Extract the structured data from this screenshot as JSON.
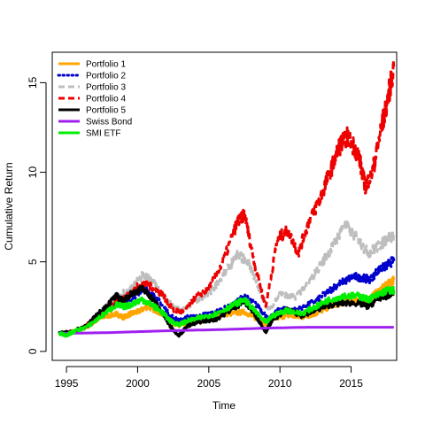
{
  "chart_data": {
    "type": "line",
    "title": "",
    "xlabel": "Time",
    "ylabel": "Cumulative Return",
    "xlim": [
      1994.0,
      2018.2
    ],
    "ylim": [
      -0.5,
      16.7
    ],
    "xticks": [
      1995,
      2000,
      2005,
      2010,
      2015
    ],
    "yticks": [
      0,
      5,
      10,
      15
    ],
    "grid": false,
    "legend_position": "top-left",
    "series": [
      {
        "name": "Portfolio 1",
        "color": "#FFA500",
        "style": "solid",
        "x": [
          1994.5,
          1995.5,
          1996.5,
          1997.5,
          1998.5,
          1999.0,
          1999.5,
          2000.0,
          2000.7,
          2001.5,
          2002.3,
          2002.9,
          2003.5,
          2004.5,
          2005.5,
          2006.5,
          2007.5,
          2008.2,
          2009.0,
          2009.5,
          2010.5,
          2011.5,
          2012.5,
          2013.5,
          2014.5,
          2015.5,
          2016.2,
          2017.0,
          2017.5,
          2018.0
        ],
        "y": [
          1.0,
          1.1,
          1.4,
          1.9,
          2.1,
          1.9,
          2.1,
          2.2,
          2.5,
          2.2,
          1.7,
          1.4,
          1.6,
          1.7,
          2.0,
          2.1,
          2.2,
          1.9,
          1.5,
          1.8,
          2.0,
          1.9,
          2.1,
          2.5,
          2.8,
          2.9,
          2.9,
          3.4,
          3.7,
          4.0
        ]
      },
      {
        "name": "Portfolio 2",
        "color": "#0000CC",
        "style": "dotted",
        "x": [
          1994.5,
          1995.5,
          1996.5,
          1997.5,
          1998.5,
          1999.5,
          2000.5,
          2001.0,
          2001.5,
          2002.3,
          2002.9,
          2003.5,
          2004.5,
          2005.5,
          2006.5,
          2007.5,
          2008.5,
          2009.2,
          2010.0,
          2011.0,
          2012.0,
          2013.0,
          2013.8,
          2014.5,
          2015.2,
          2015.8,
          2016.3,
          2017.0,
          2017.5,
          2018.0
        ],
        "y": [
          1.0,
          1.1,
          1.4,
          2.1,
          2.7,
          2.9,
          3.5,
          3.2,
          2.8,
          2.0,
          1.7,
          1.9,
          2.0,
          2.2,
          2.5,
          3.1,
          2.5,
          1.8,
          2.4,
          2.3,
          2.6,
          3.1,
          3.6,
          3.9,
          4.2,
          4.1,
          4.0,
          4.6,
          4.8,
          5.1
        ]
      },
      {
        "name": "Portfolio 3",
        "color": "#BEBEBE",
        "style": "dashed",
        "x": [
          1994.5,
          1995.5,
          1996.5,
          1997.5,
          1998.5,
          1999.5,
          2000.3,
          2001.0,
          2001.7,
          2002.5,
          2003.2,
          2004.0,
          2005.0,
          2006.0,
          2007.0,
          2007.8,
          2008.5,
          2009.2,
          2010.0,
          2011.0,
          2012.0,
          2013.0,
          2013.8,
          2014.5,
          2015.5,
          2016.2,
          2017.0,
          2017.5,
          2018.0
        ],
        "y": [
          1.0,
          1.1,
          1.5,
          2.3,
          3.0,
          3.5,
          4.2,
          4.0,
          3.2,
          2.5,
          2.3,
          2.8,
          3.2,
          4.2,
          5.4,
          5.0,
          3.5,
          2.3,
          3.2,
          3.0,
          3.8,
          5.0,
          6.0,
          7.1,
          6.2,
          5.5,
          5.9,
          6.3,
          6.5
        ]
      },
      {
        "name": "Portfolio 4",
        "color": "#EE0000",
        "style": "dashed",
        "x": [
          1994.5,
          1995.5,
          1996.5,
          1997.5,
          1998.5,
          1999.5,
          2000.3,
          2001.0,
          2001.7,
          2002.5,
          2003.2,
          2004.0,
          2005.0,
          2006.0,
          2007.0,
          2007.5,
          2008.2,
          2009.0,
          2009.8,
          2010.5,
          2011.3,
          2012.0,
          2012.8,
          2013.5,
          2014.2,
          2014.8,
          2015.5,
          2016.0,
          2016.5,
          2017.0,
          2017.5,
          2018.0
        ],
        "y": [
          1.0,
          1.1,
          1.5,
          2.2,
          2.8,
          3.3,
          3.8,
          3.6,
          3.2,
          2.3,
          2.2,
          3.0,
          3.5,
          5.0,
          7.2,
          7.7,
          5.0,
          2.5,
          6.2,
          6.8,
          5.5,
          7.2,
          8.5,
          10.0,
          11.5,
          12.0,
          11.0,
          9.2,
          10.0,
          12.0,
          13.8,
          15.9
        ]
      },
      {
        "name": "Portfolio 5",
        "color": "#000000",
        "style": "solid",
        "x": [
          1994.5,
          1995.5,
          1996.5,
          1997.5,
          1998.5,
          1999.0,
          1999.5,
          2000.3,
          2001.0,
          2001.7,
          2002.3,
          2002.9,
          2003.5,
          2004.5,
          2005.5,
          2006.5,
          2007.5,
          2008.3,
          2009.0,
          2009.5,
          2010.5,
          2011.5,
          2012.5,
          2013.5,
          2014.5,
          2015.5,
          2016.2,
          2017.0,
          2017.5,
          2018.0
        ],
        "y": [
          1.0,
          1.1,
          1.5,
          2.3,
          3.1,
          2.8,
          3.2,
          3.5,
          3.0,
          2.2,
          1.4,
          0.9,
          1.4,
          1.7,
          1.8,
          2.3,
          2.8,
          2.0,
          1.1,
          1.8,
          2.3,
          2.0,
          2.3,
          2.6,
          2.7,
          2.7,
          2.5,
          3.0,
          3.1,
          3.3
        ]
      },
      {
        "name": "Swiss Bond",
        "color": "#A020F0",
        "style": "solid",
        "x": [
          1994.5,
          1998.0,
          2002.0,
          2006.0,
          2009.0,
          2012.0,
          2015.0,
          2018.0
        ],
        "y": [
          1.0,
          1.05,
          1.15,
          1.22,
          1.3,
          1.35,
          1.35,
          1.35
        ]
      },
      {
        "name": "SMI ETF",
        "color": "#00EE00",
        "style": "solid",
        "x": [
          1994.5,
          1995.0,
          1995.5,
          1996.5,
          1997.5,
          1998.5,
          1999.0,
          1999.5,
          2000.3,
          2001.0,
          2001.7,
          2002.3,
          2002.9,
          2003.5,
          2004.5,
          2005.5,
          2006.5,
          2007.5,
          2008.3,
          2009.0,
          2009.5,
          2010.5,
          2011.5,
          2012.5,
          2013.5,
          2014.5,
          2015.5,
          2016.2,
          2017.0,
          2017.5,
          2018.0
        ],
        "y": [
          1.0,
          0.9,
          1.1,
          1.4,
          2.0,
          2.6,
          2.5,
          2.6,
          2.9,
          2.6,
          2.2,
          1.7,
          1.5,
          1.7,
          1.9,
          2.1,
          2.5,
          2.9,
          2.2,
          1.6,
          2.0,
          2.3,
          2.1,
          2.5,
          2.9,
          3.1,
          3.1,
          2.9,
          3.2,
          3.4,
          3.4
        ]
      }
    ]
  }
}
